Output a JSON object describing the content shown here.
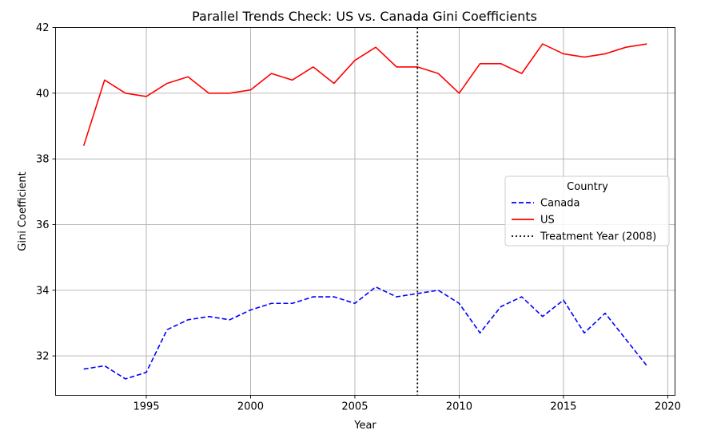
{
  "chart_data": {
    "type": "line",
    "title": "Parallel Trends Check: US vs. Canada Gini Coefficients",
    "xlabel": "Year",
    "ylabel": "Gini Coefficient",
    "xlim": [
      1990.65,
      2020.35
    ],
    "ylim": [
      30.8,
      42
    ],
    "x_ticks": [
      1995,
      2000,
      2005,
      2010,
      2015,
      2020
    ],
    "y_ticks": [
      32,
      34,
      36,
      38,
      40,
      42
    ],
    "grid": true,
    "x": [
      1992,
      1993,
      1994,
      1995,
      1996,
      1997,
      1998,
      1999,
      2000,
      2001,
      2002,
      2003,
      2004,
      2005,
      2006,
      2007,
      2008,
      2009,
      2010,
      2011,
      2012,
      2013,
      2014,
      2015,
      2016,
      2017,
      2018,
      2019
    ],
    "series": [
      {
        "name": "Canada",
        "color": "#0000ff",
        "style": "dashed",
        "values": [
          31.6,
          31.7,
          31.3,
          31.5,
          32.8,
          33.1,
          33.2,
          33.1,
          33.4,
          33.6,
          33.6,
          33.8,
          33.8,
          33.6,
          34.1,
          33.8,
          33.9,
          34.0,
          33.6,
          32.7,
          33.5,
          33.8,
          33.2,
          33.7,
          32.7,
          33.3,
          32.5,
          31.7
        ]
      },
      {
        "name": "US",
        "color": "#ff0000",
        "style": "solid",
        "values": [
          38.4,
          40.4,
          40.0,
          39.9,
          40.3,
          40.5,
          40.0,
          40.0,
          40.1,
          40.6,
          40.4,
          40.8,
          40.3,
          41.0,
          41.4,
          40.8,
          40.8,
          40.6,
          40.0,
          40.9,
          40.9,
          40.6,
          41.5,
          41.2,
          41.1,
          41.2,
          41.4,
          41.5
        ]
      }
    ],
    "vline": {
      "x": 2008,
      "label": "Treatment Year (2008)",
      "color": "#000000",
      "style": "dotted"
    },
    "legend": {
      "title": "Country",
      "placement": "center-right",
      "entries": [
        "Canada",
        "US",
        "Treatment Year (2008)"
      ]
    }
  }
}
